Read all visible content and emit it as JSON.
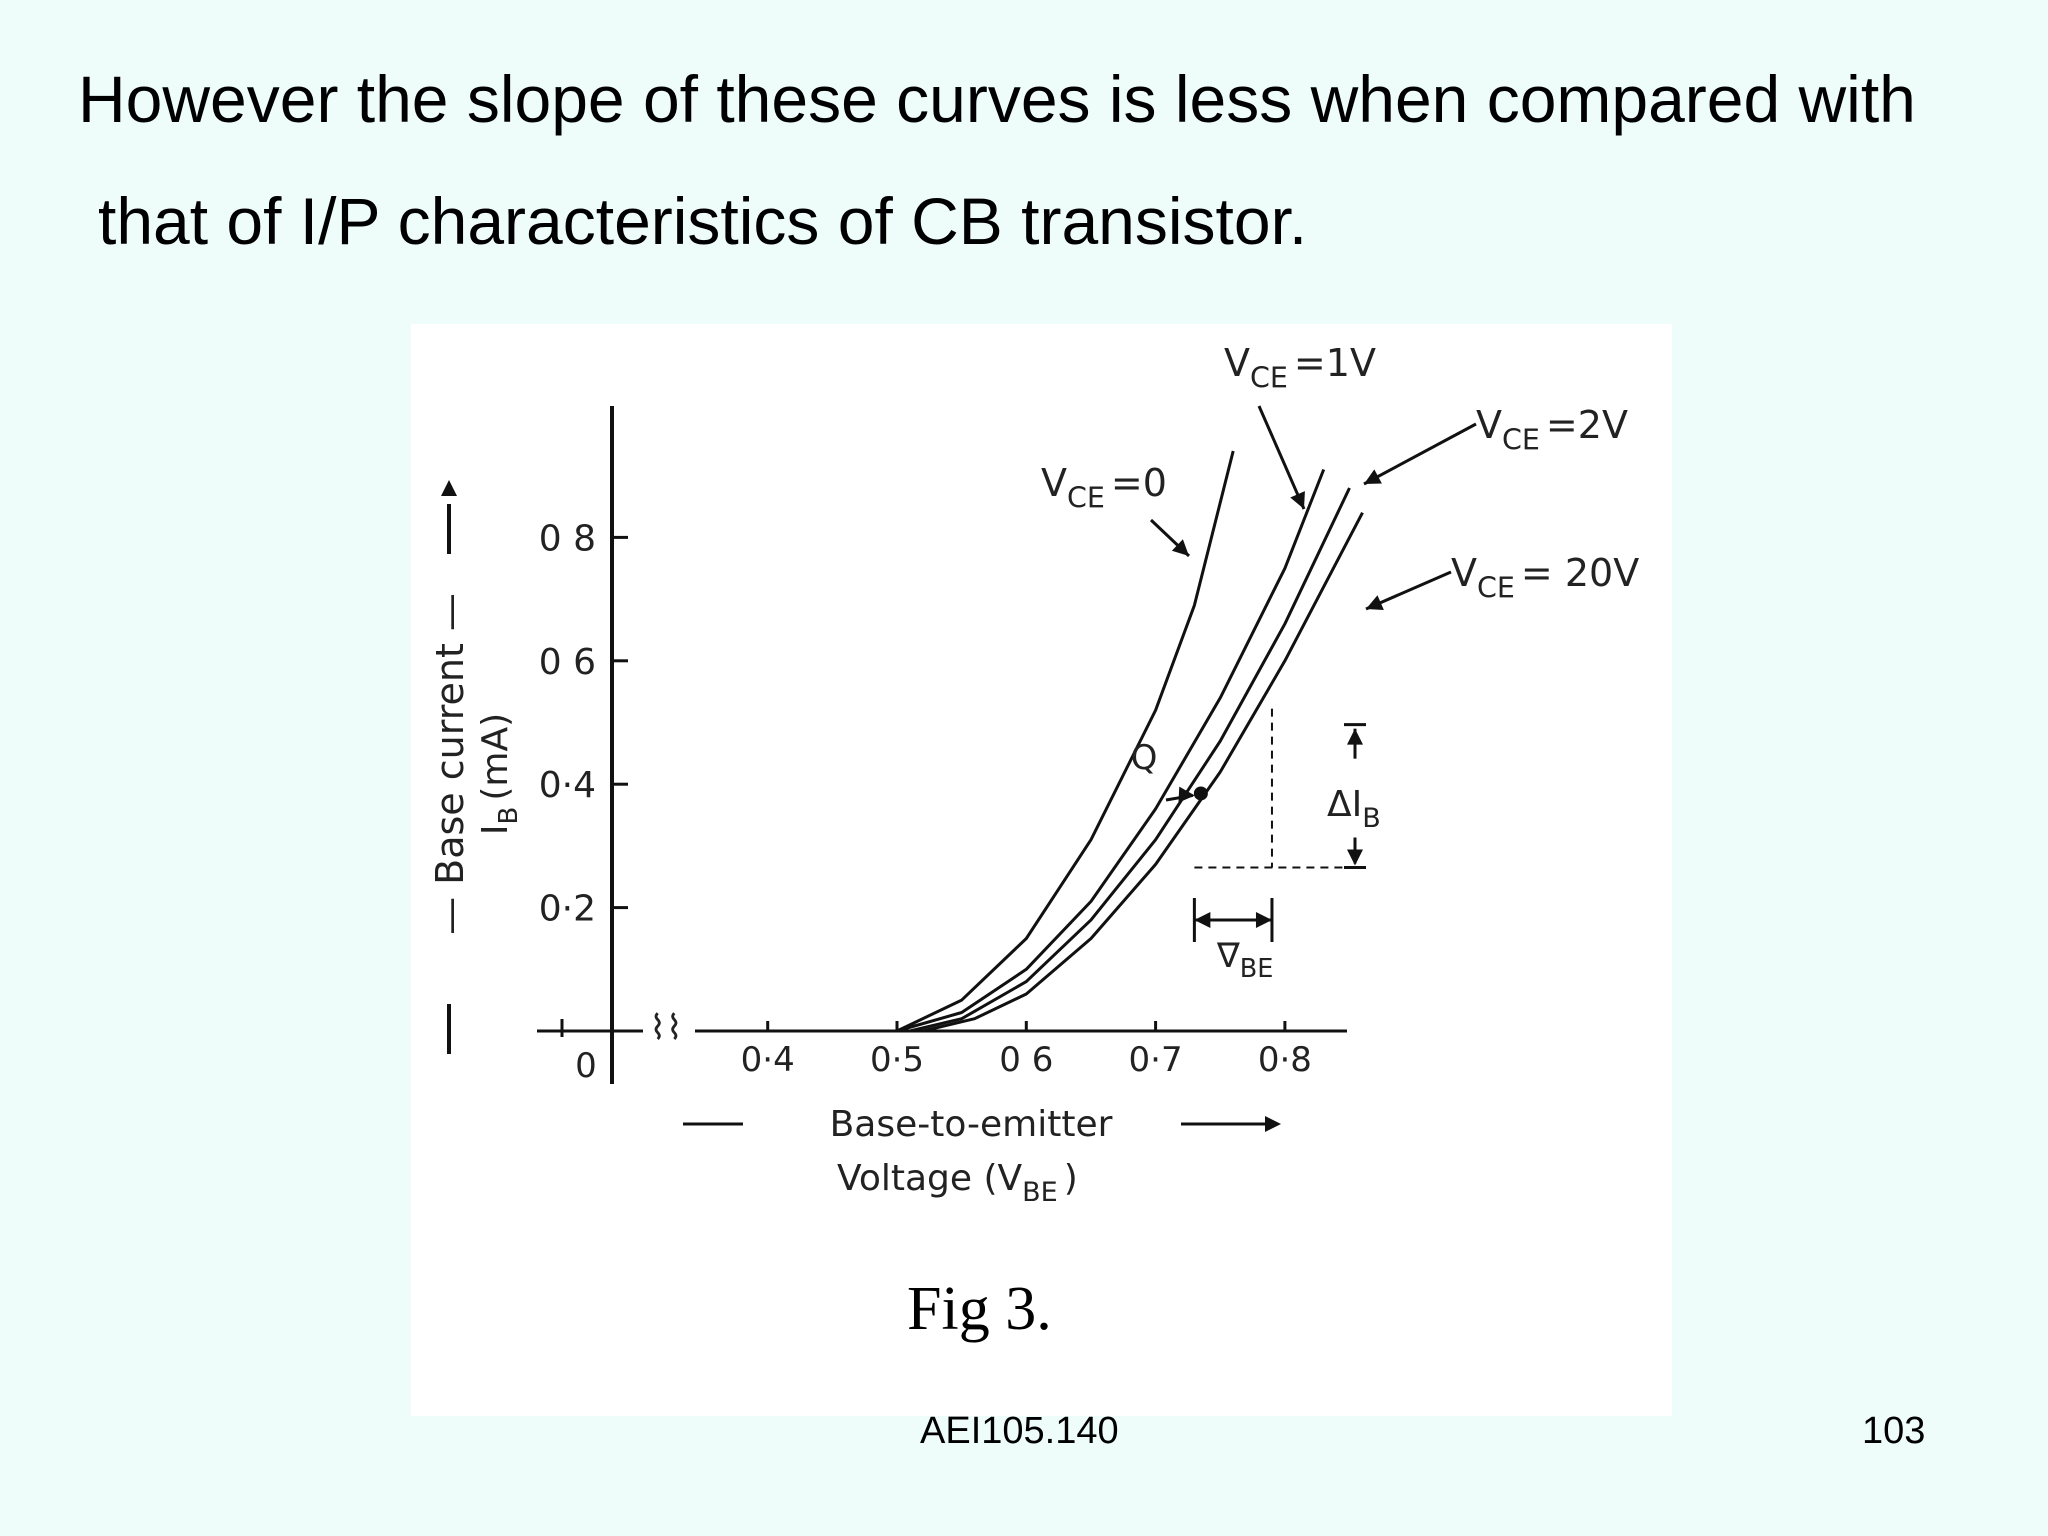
{
  "slide": {
    "text_line1": "However the slope of these curves is less when compared with",
    "text_line2": "that of I/P characteristics of CB transistor.",
    "caption": "Fig 3.",
    "footer_code": "AEI105.140",
    "page_number": "103"
  },
  "chart_data": {
    "type": "line",
    "title": "",
    "xlabel_line1": "Base-to-emitter",
    "xlabel_line2": "Voltage (V",
    "xlabel_sub": "BE",
    "xlabel_end": ")",
    "ylabel_line1": "Base current",
    "ylabel_line2": "I",
    "ylabel_sub": "B",
    "ylabel_unit": "(mA)",
    "x_ticks": [
      {
        "value": 0.4,
        "label": "0·4"
      },
      {
        "value": 0.5,
        "label": "0·5"
      },
      {
        "value": 0.6,
        "label": "0 6"
      },
      {
        "value": 0.7,
        "label": "0·7"
      },
      {
        "value": 0.8,
        "label": "0·8"
      }
    ],
    "x_origin_label": "0",
    "y_ticks": [
      {
        "value": 0.2,
        "label": "0·2"
      },
      {
        "value": 0.4,
        "label": "0·4"
      },
      {
        "value": 0.6,
        "label": "0 6"
      },
      {
        "value": 0.8,
        "label": "0 8"
      }
    ],
    "xlim": [
      0.35,
      0.85
    ],
    "ylim": [
      0,
      0.98
    ],
    "series": [
      {
        "name": "VCE=0",
        "label_main": "V",
        "label_sub": "CE",
        "label_rest": "=0",
        "x": [
          0.5,
          0.55,
          0.6,
          0.65,
          0.7,
          0.73,
          0.76
        ],
        "y": [
          0,
          0.05,
          0.15,
          0.31,
          0.52,
          0.69,
          0.94
        ]
      },
      {
        "name": "VCE=1V",
        "label_main": "V",
        "label_sub": "CE",
        "label_rest": "=1V",
        "x": [
          0.5,
          0.55,
          0.6,
          0.65,
          0.7,
          0.75,
          0.8,
          0.83
        ],
        "y": [
          0,
          0.03,
          0.1,
          0.21,
          0.36,
          0.54,
          0.75,
          0.91
        ]
      },
      {
        "name": "VCE=2V",
        "label_main": "V",
        "label_sub": "CE",
        "label_rest": "=2V",
        "x": [
          0.51,
          0.55,
          0.6,
          0.65,
          0.7,
          0.75,
          0.8,
          0.85
        ],
        "y": [
          0,
          0.02,
          0.08,
          0.18,
          0.31,
          0.47,
          0.66,
          0.88
        ]
      },
      {
        "name": "VCE=20V",
        "label_main": "V",
        "label_sub": "CE",
        "label_rest": "= 20V",
        "x": [
          0.52,
          0.56,
          0.6,
          0.65,
          0.7,
          0.75,
          0.8,
          0.86
        ],
        "y": [
          0,
          0.02,
          0.06,
          0.15,
          0.27,
          0.42,
          0.6,
          0.84
        ]
      }
    ],
    "annotations": {
      "q_label": "Q",
      "q_point": {
        "x": 0.735,
        "y": 0.385
      },
      "delta_ib_label": "ΔI",
      "delta_ib_sub": "B",
      "delta_ib_range": [
        0.265,
        0.49
      ],
      "delta_vbe_label": "∇",
      "delta_vbe_sub": "BE",
      "delta_vbe_range": [
        0.73,
        0.79
      ],
      "axis_break": "⌇⌇"
    },
    "grid": false,
    "legend": "none"
  }
}
